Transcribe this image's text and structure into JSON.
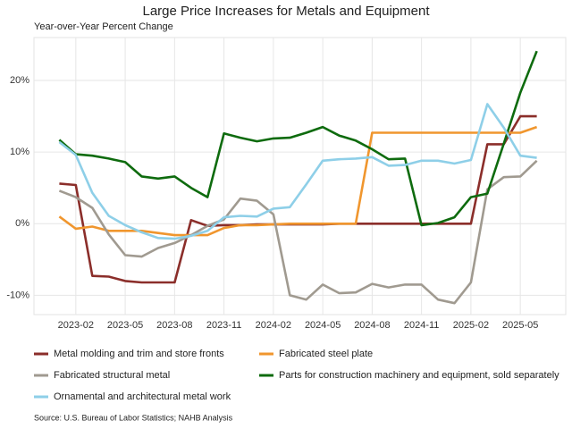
{
  "chart_data": {
    "type": "line",
    "title": "Large Price Increases for Metals and Equipment",
    "subtitle": "Year-over-Year Percent Change",
    "source": "Source: U.S. Bureau of Labor Statistics; NAHB Analysis",
    "x": [
      "2023-01",
      "2023-02",
      "2023-03",
      "2023-04",
      "2023-05",
      "2023-06",
      "2023-07",
      "2023-08",
      "2023-09",
      "2023-10",
      "2023-11",
      "2023-12",
      "2024-01",
      "2024-02",
      "2024-03",
      "2024-04",
      "2024-05",
      "2024-06",
      "2024-07",
      "2024-08",
      "2024-09",
      "2024-10",
      "2024-11",
      "2024-12",
      "2025-01",
      "2025-02",
      "2025-03",
      "2025-04",
      "2025-05",
      "2025-06"
    ],
    "xlim": [
      "2022-12",
      "2025-07"
    ],
    "xticks": [
      "2023-02",
      "2023-05",
      "2023-08",
      "2023-11",
      "2024-02",
      "2024-05",
      "2024-08",
      "2024-11",
      "2025-02",
      "2025-05"
    ],
    "ylim": [
      -12.7,
      26
    ],
    "yticks": [
      {
        "value": -10,
        "label": "-10%"
      },
      {
        "value": 0,
        "label": "0%"
      },
      {
        "value": 10,
        "label": "10%"
      },
      {
        "value": 20,
        "label": "20%"
      }
    ],
    "grid": true,
    "legend": "bottom",
    "series": [
      {
        "name": "Metal molding and trim and store fronts",
        "color": "#8b2e2a",
        "values": [
          5.6,
          5.4,
          -7.3,
          -7.4,
          -8.0,
          -8.2,
          -8.2,
          -8.2,
          0.5,
          -0.3,
          -0.2,
          -0.2,
          -0.1,
          -0.1,
          -0.1,
          -0.1,
          -0.1,
          0,
          0,
          0,
          0,
          0,
          0,
          0,
          0,
          0,
          11.1,
          11.1,
          15.0,
          15.0
        ]
      },
      {
        "name": "Fabricated steel plate",
        "color": "#f0962e",
        "values": [
          1.0,
          -0.7,
          -0.4,
          -1.0,
          -1.0,
          -1.0,
          -1.3,
          -1.6,
          -1.6,
          -1.6,
          -0.6,
          -0.2,
          -0.2,
          -0.1,
          0,
          0,
          0,
          0,
          0,
          12.7,
          12.7,
          12.7,
          12.7,
          12.7,
          12.7,
          12.7,
          12.7,
          12.7,
          12.7,
          13.5
        ]
      },
      {
        "name": "Fabricated structural metal",
        "color": "#a09a90",
        "values": [
          4.6,
          3.7,
          2.2,
          -1.5,
          -4.4,
          -4.6,
          -3.4,
          -2.7,
          -1.6,
          -0.3,
          0.6,
          3.5,
          3.2,
          1.3,
          -10.0,
          -10.6,
          -8.5,
          -9.7,
          -9.6,
          -8.4,
          -8.9,
          -8.5,
          -8.5,
          -10.6,
          -11.1,
          -8.2,
          4.8,
          6.5,
          6.6,
          8.8
        ]
      },
      {
        "name": "Parts for construction machinery and equipment, sold separately",
        "color": "#0e6b0e",
        "values": [
          11.7,
          9.7,
          9.5,
          9.1,
          8.6,
          6.6,
          6.3,
          6.6,
          5.0,
          3.7,
          12.6,
          12.0,
          11.5,
          11.9,
          12.0,
          12.7,
          13.5,
          12.3,
          11.6,
          10.4,
          9.0,
          9.1,
          -0.2,
          0.1,
          0.9,
          3.7,
          4.2,
          11.2,
          18.3,
          24.1
        ]
      },
      {
        "name": "Ornamental and architectural metal work",
        "color": "#8ecfe8",
        "values": [
          11.4,
          9.6,
          4.3,
          1.1,
          -0.2,
          -1.2,
          -2.0,
          -2.1,
          -1.7,
          -1.0,
          0.9,
          1.1,
          1.0,
          2.1,
          2.3,
          5.5,
          8.8,
          9.0,
          9.1,
          9.3,
          8.1,
          8.2,
          8.8,
          8.8,
          8.4,
          8.9,
          16.7,
          13.4,
          9.5,
          9.2
        ]
      }
    ]
  }
}
